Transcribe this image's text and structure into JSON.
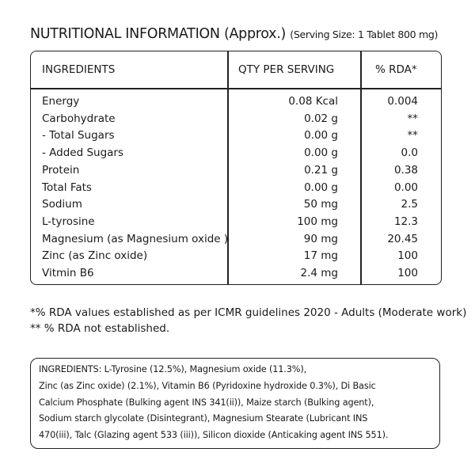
{
  "title": "NUTRITIONAL INFORMATION (Approx.)",
  "subtitle": "(Serving Size: 1 Tablet 800 mg)",
  "table": {
    "headers": [
      "INGREDIENTS",
      "QTY PER SERVING",
      "% RDA*"
    ],
    "rows": [
      [
        "Energy",
        "0.08 Kcal",
        "0.004"
      ],
      [
        "Carbohydrate",
        "0.02 g",
        "**"
      ],
      [
        "- Total Sugars",
        "0.00 g",
        "**"
      ],
      [
        "- Added Sugars",
        "0.00 g",
        "0.0"
      ],
      [
        "Protein",
        "0.21 g",
        "0.38"
      ],
      [
        "Total Fats",
        "0.00 g",
        "0.00"
      ],
      [
        "Sodium",
        "50 mg",
        "2.5"
      ],
      [
        "L-tyrosine",
        "100 mg",
        "12.3"
      ],
      [
        "Magnesium (as Magnesium oxide )",
        "90 mg",
        "20.45"
      ],
      [
        "Zinc (as Zinc oxide)",
        "17 mg",
        "100"
      ],
      [
        "Vitmin B6",
        "2.4 mg",
        "100"
      ]
    ]
  },
  "footnotes": [
    "*% RDA values established as per ICMR guidelines 2020 - Adults (Moderate work)",
    "** % RDA not established."
  ],
  "ingredients": [
    "INGREDIENTS: L-Tyrosine (12.5%), Magnesium oxide (11.3%),",
    "Zinc (as Zinc oxide) (2.1%), Vitamin B6 (Pyridoxine hydroxide 0.3%), Di Basic",
    "Calcium Phosphate (Bulking agent INS 341(ii)), Maize starch (Bulking agent),",
    "Sodium starch glycolate (Disintegrant), Magnesium Stearate (Lubricant INS",
    "470(iii), Talc (Glazing agent 533 (iii)), Silicon dioxide (Anticaking agent INS 551)."
  ]
}
